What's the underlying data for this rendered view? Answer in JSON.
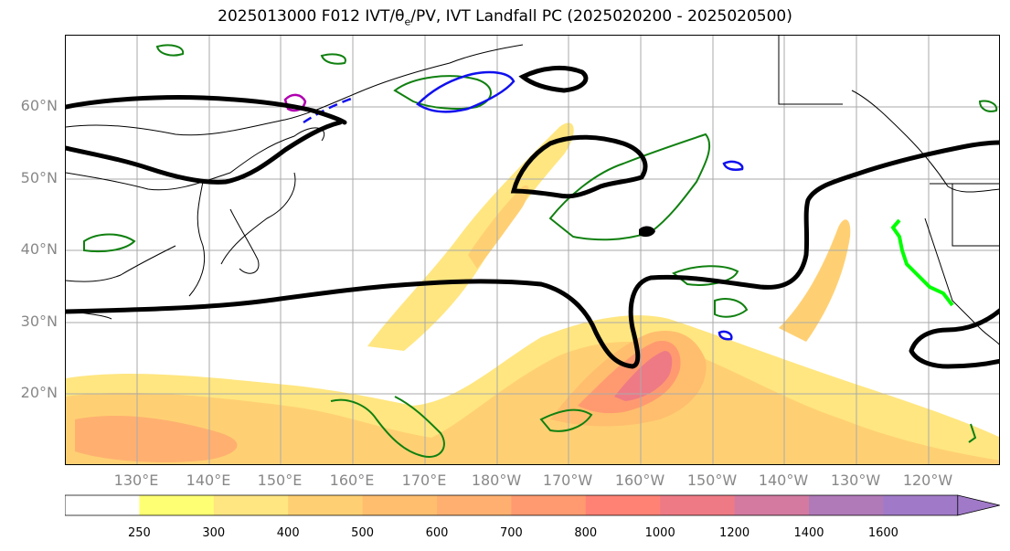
{
  "title": {
    "prefix": "2025013000 F012 IVT/θ",
    "sub": "e",
    "suffix": "/PV, IVT Landfall PC (2025020200 - 2025020500)"
  },
  "map": {
    "lat_labels": [
      "60°N",
      "50°N",
      "40°N",
      "30°N",
      "20°N"
    ],
    "lon_labels": [
      "130°E",
      "140°E",
      "150°E",
      "160°E",
      "170°E",
      "180°W",
      "170°W",
      "160°W",
      "150°W",
      "140°W",
      "130°W",
      "120°W"
    ]
  },
  "colorbar": {
    "levels": [
      "250",
      "300",
      "400",
      "500",
      "600",
      "700",
      "800",
      "1000",
      "1200",
      "1400",
      "1600"
    ],
    "colors": [
      "#ffffff",
      "#ffff73",
      "#ffe680",
      "#ffd073",
      "#ffbe6e",
      "#ffb070",
      "#ff9a70",
      "#ff8275",
      "#ee7a85",
      "#d47aa0",
      "#b07ab8",
      "#a07ac8"
    ]
  },
  "colors": {
    "mslp_contour": "#000000",
    "pv_contour": "#108010",
    "theta_e_contour": "#1010ee",
    "other_contour": "#b000b0",
    "landfall_coast": "#00ff00",
    "grid": "#aaaaaa"
  }
}
